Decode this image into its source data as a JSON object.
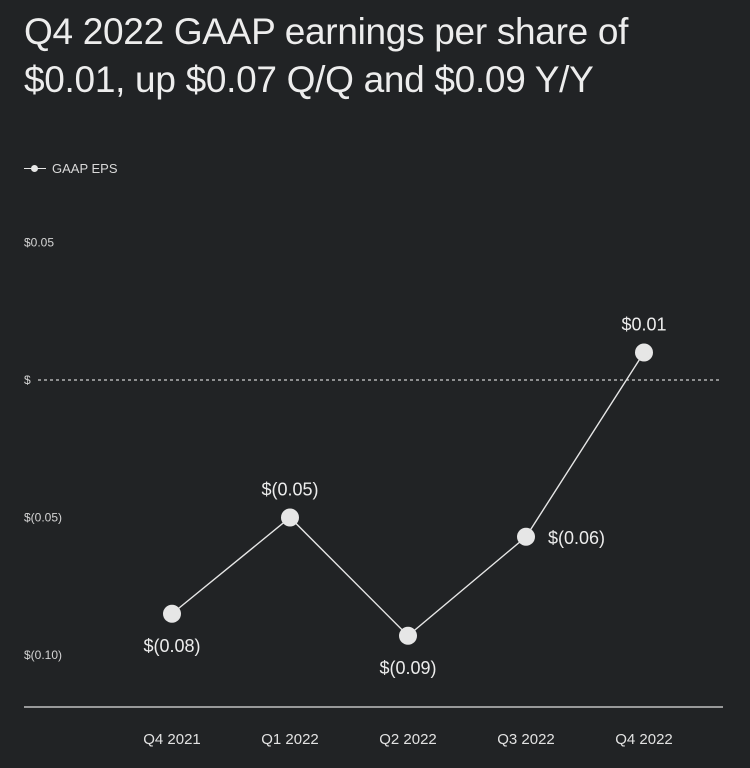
{
  "title": {
    "line1": "Q4 2022 GAAP earnings per share of",
    "line2": "$0.01, up $0.07 Q/Q and $0.09 Y/Y"
  },
  "legend": {
    "label": "GAAP EPS"
  },
  "colors": {
    "background": "#212325",
    "line": "#e6e6e6",
    "text": "#ededed",
    "zero_line": "#d0d0d0"
  },
  "chart_data": {
    "type": "line",
    "categories": [
      "Q4 2021",
      "Q1 2022",
      "Q2 2022",
      "Q3  2022",
      "Q4 2022"
    ],
    "series": [
      {
        "name": "GAAP EPS",
        "values": [
          -0.085,
          -0.05,
          -0.093,
          -0.057,
          0.01
        ],
        "labels": [
          "$(0.08)",
          "$(0.05)",
          "$(0.09)",
          "$(0.06)",
          "$0.01"
        ],
        "label_positions": [
          "below",
          "above",
          "below",
          "right",
          "above"
        ]
      }
    ],
    "y_ticks": [
      {
        "value": 0.05,
        "label": "$0.05"
      },
      {
        "value": 0,
        "label": "$"
      },
      {
        "value": -0.05,
        "label": "$(0.05)"
      },
      {
        "value": -0.1,
        "label": "$(0.10)"
      }
    ],
    "ylim": [
      -0.12,
      0.07
    ],
    "reference_line": {
      "value": 0,
      "style": "dashed"
    },
    "grid": false,
    "legend_position": "top-left",
    "title": "Q4 2022 GAAP earnings per share of $0.01, up $0.07 Q/Q and $0.09 Y/Y",
    "xlabel": "",
    "ylabel": ""
  }
}
